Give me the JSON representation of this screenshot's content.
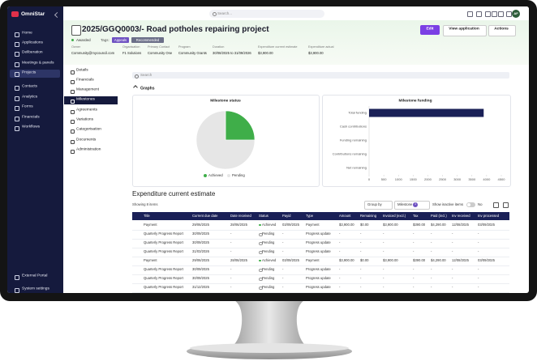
{
  "sidebar": {
    "brand": "OmniStar",
    "items": [
      "Home",
      "Applications",
      "Deliberation",
      "Meetings & panels",
      "Projects",
      "Contacts",
      "Analytics",
      "Forms",
      "Financials",
      "Workflows"
    ],
    "active_item": 4,
    "footer_items": [
      "External Portal",
      "System settings"
    ]
  },
  "topbar": {
    "search_placeholder": "Search...",
    "avatar": "AF"
  },
  "header": {
    "title": "2025/GGQ0003/-  Road potholes repairing project",
    "status": "Awarded",
    "tags_label": "Tags:",
    "tags": [
      "Appeals",
      "Recommended"
    ],
    "buttons": [
      "Edit",
      "View application",
      "Actions"
    ],
    "meta": [
      {
        "label": "Owner",
        "value": "Community@mycouncil.com"
      },
      {
        "label": "Organisation",
        "value": "F1 Solutions"
      },
      {
        "label": "Primary Contact",
        "value": "Community One"
      },
      {
        "label": "Program",
        "value": "Community Grants"
      },
      {
        "label": "Duration",
        "value": "30/08/2025 to 31/09/2026"
      },
      {
        "label": "Expenditure current estimate",
        "value": "$3,900.00"
      },
      {
        "label": "Expenditure actual",
        "value": "$3,900.00"
      }
    ]
  },
  "subnav": {
    "items": [
      "Details",
      "Financials",
      "Management",
      "Milestones",
      "Agreements",
      "Variations",
      "Categorisation",
      "Documents",
      "Administration"
    ],
    "active_item": 3
  },
  "main": {
    "search_placeholder": "Search",
    "graphs_heading": "Graphs",
    "section_title": "Expenditure current estimate",
    "items_count": "Showing 8 items",
    "group_by": "Group by",
    "milestone_filter": "Milestone",
    "milestone_badge": "1",
    "inactive_label": "Show inactive items",
    "inactive_value": "No"
  },
  "milestone_status_chart": {
    "type": "pie",
    "title": "Milestone status",
    "categories": [
      "Achieved",
      "Pending"
    ],
    "values": [
      25,
      75
    ],
    "colors": [
      "#3fae49",
      "#e6e6e6"
    ]
  },
  "milestone_funding_chart": {
    "type": "bar",
    "orientation": "horizontal",
    "title": "Milestone funding",
    "categories": [
      "Total funding",
      "Cash contributions",
      "Funding remaining",
      "Contributions remaining",
      "Net remaining"
    ],
    "values": [
      3900,
      0,
      0,
      0,
      0
    ],
    "color": "#1a2057",
    "xlim": [
      0,
      4500
    ],
    "xticks": [
      0,
      500,
      1000,
      1500,
      2000,
      2500,
      3000,
      3500,
      4000,
      4500
    ]
  },
  "table": {
    "columns": [
      "Title",
      "Current due date",
      "Date received",
      "Status",
      "Payid",
      "Type",
      "Amount",
      "Remaining",
      "Invoiced (excl.)",
      "Tax",
      "Paid (incl.)",
      "Inv received",
      "Inv processed"
    ],
    "rows": [
      [
        "Payment",
        "29/06/2025",
        "28/06/2025",
        "Achieved",
        "03/09/2025",
        "Payment",
        "$3,900.00",
        "$0.00",
        "$3,900.00",
        "$390.00",
        "$4,290.00",
        "12/08/2025",
        "03/09/2025"
      ],
      [
        "Quarterly Progress Report",
        "30/09/2025",
        "-",
        "Pending",
        "-",
        "Progress update",
        "-",
        "-",
        "-",
        "-",
        "-",
        "-",
        "-"
      ],
      [
        "Quarterly Progress Report",
        "30/09/2025",
        "-",
        "Pending",
        "-",
        "Progress update",
        "-",
        "-",
        "-",
        "-",
        "-",
        "-",
        "-"
      ],
      [
        "Quarterly Progress Report",
        "31/03/2026",
        "-",
        "Pending",
        "-",
        "Progress update",
        "-",
        "-",
        "-",
        "-",
        "-",
        "-",
        "-"
      ],
      [
        "Payment",
        "29/06/2025",
        "28/06/2025",
        "Achieved",
        "03/09/2025",
        "Payment",
        "$3,900.00",
        "$0.00",
        "$3,900.00",
        "$390.00",
        "$4,290.00",
        "12/08/2025",
        "03/09/2025"
      ],
      [
        "Quarterly Progress Report",
        "30/09/2025",
        "-",
        "Pending",
        "-",
        "Progress update",
        "-",
        "-",
        "-",
        "-",
        "-",
        "-",
        "-"
      ],
      [
        "Quarterly Progress Report",
        "30/09/2025",
        "-",
        "Pending",
        "-",
        "Progress update",
        "-",
        "-",
        "-",
        "-",
        "-",
        "-",
        "-"
      ],
      [
        "Quarterly Progress Report",
        "31/12/2025",
        "-",
        "Pending",
        "-",
        "Progress update",
        "-",
        "-",
        "-",
        "-",
        "-",
        "-",
        "-"
      ]
    ]
  }
}
